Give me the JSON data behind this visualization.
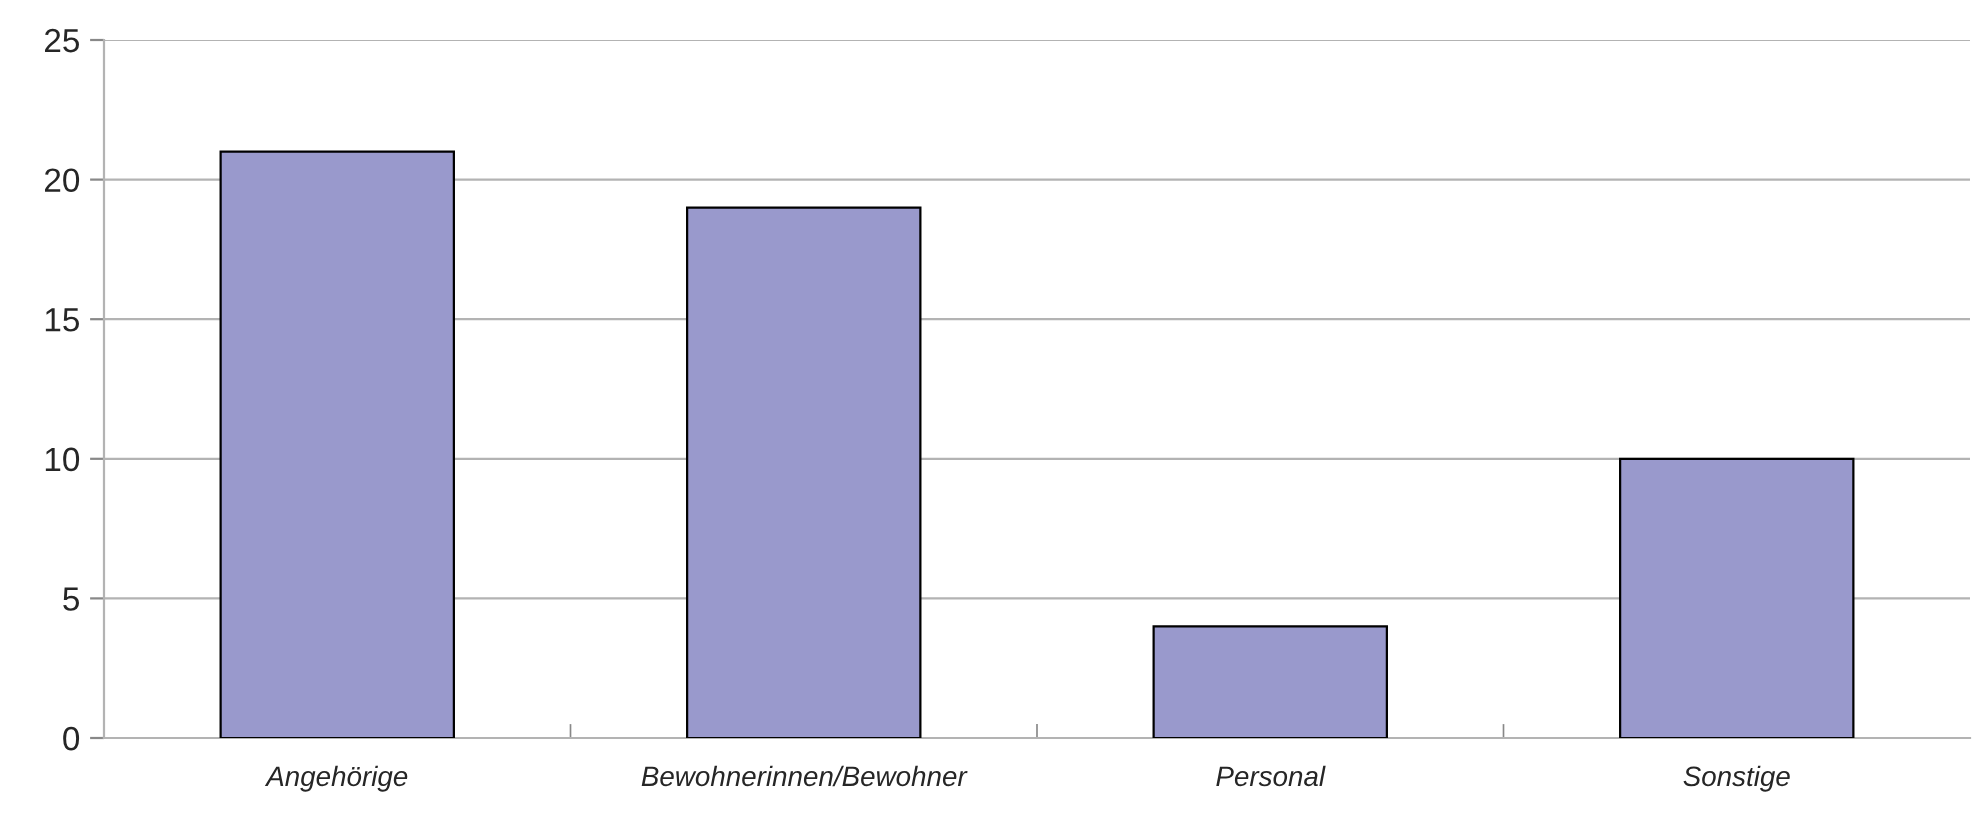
{
  "chart_data": {
    "type": "bar",
    "categories": [
      "Angehörige",
      "Bewohnerinnen/Bewohner",
      "Personal",
      "Sonstige"
    ],
    "values": [
      21,
      19,
      4,
      10
    ],
    "color": "#9999cc",
    "ylim": [
      0,
      25
    ],
    "yticks": [
      0,
      5,
      10,
      15,
      20,
      25
    ],
    "grid": "y"
  }
}
